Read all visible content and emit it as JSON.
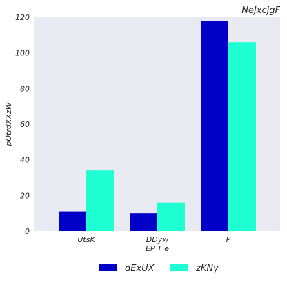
{
  "chart_data": {
    "type": "bar",
    "title": "NeJxcjgF",
    "xlabel": "EP T e",
    "ylabel": "pOtrdXXzW",
    "categories": [
      "UtsK",
      "DDyw",
      "P"
    ],
    "series": [
      {
        "name": "dExUX",
        "values": [
          11,
          10,
          118
        ],
        "color": "#0000c8"
      },
      {
        "name": "zKNy",
        "values": [
          34,
          16,
          106
        ],
        "color": "#1effd2"
      }
    ],
    "ylim": [
      0,
      120
    ],
    "yticks": [
      0,
      20,
      40,
      60,
      80,
      100,
      120
    ],
    "grid": false,
    "legend_position": "bottom-center",
    "background": "#eaeaf2"
  }
}
